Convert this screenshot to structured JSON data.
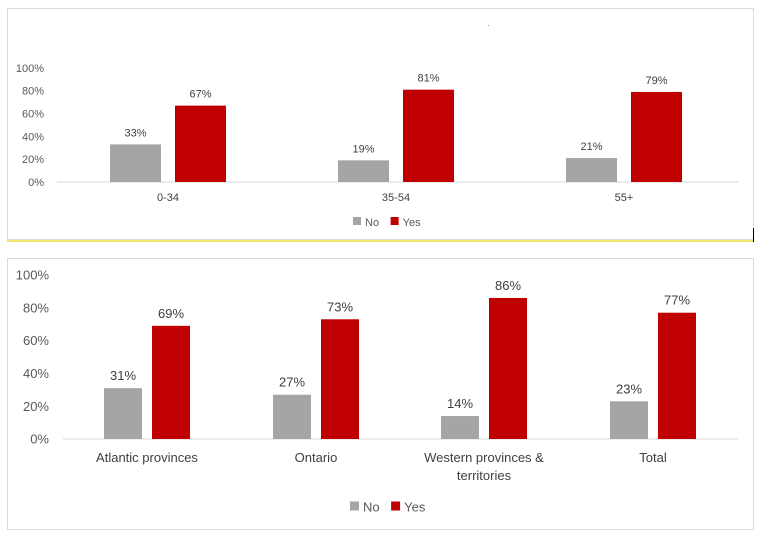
{
  "chart_data": [
    {
      "type": "bar",
      "categories": [
        "0-34",
        "35-54",
        "55+"
      ],
      "series": [
        {
          "name": "No",
          "values": [
            33,
            19,
            21
          ],
          "labels": [
            "33%",
            "19%",
            "21%"
          ]
        },
        {
          "name": "Yes",
          "values": [
            67,
            81,
            79
          ],
          "labels": [
            "67%",
            "81%",
            "79%"
          ]
        }
      ],
      "yticks": [
        "0%",
        "20%",
        "40%",
        "60%",
        "80%",
        "100%"
      ],
      "ylim": [
        0,
        100
      ],
      "title": "",
      "xlabel": "",
      "ylabel": "",
      "grid": false,
      "legend": "bottom-center"
    },
    {
      "type": "bar",
      "categories": [
        "Atlantic provinces",
        "Ontario",
        "Western provinces & territories",
        "Total"
      ],
      "series": [
        {
          "name": "No",
          "values": [
            31,
            27,
            14,
            23
          ],
          "labels": [
            "31%",
            "27%",
            "14%",
            "23%"
          ]
        },
        {
          "name": "Yes",
          "values": [
            69,
            73,
            86,
            77
          ],
          "labels": [
            "69%",
            "73%",
            "86%",
            "77%"
          ]
        }
      ],
      "yticks": [
        "0%",
        "20%",
        "40%",
        "60%",
        "80%",
        "100%"
      ],
      "ylim": [
        0,
        100
      ],
      "title": "",
      "xlabel": "",
      "ylabel": "",
      "grid": false,
      "legend": "bottom-center"
    }
  ],
  "colors": {
    "No": "#a5a5a5",
    "Yes": "#c00000",
    "axis": "#d9d9d9",
    "text": "#595959",
    "label": "#404040"
  }
}
